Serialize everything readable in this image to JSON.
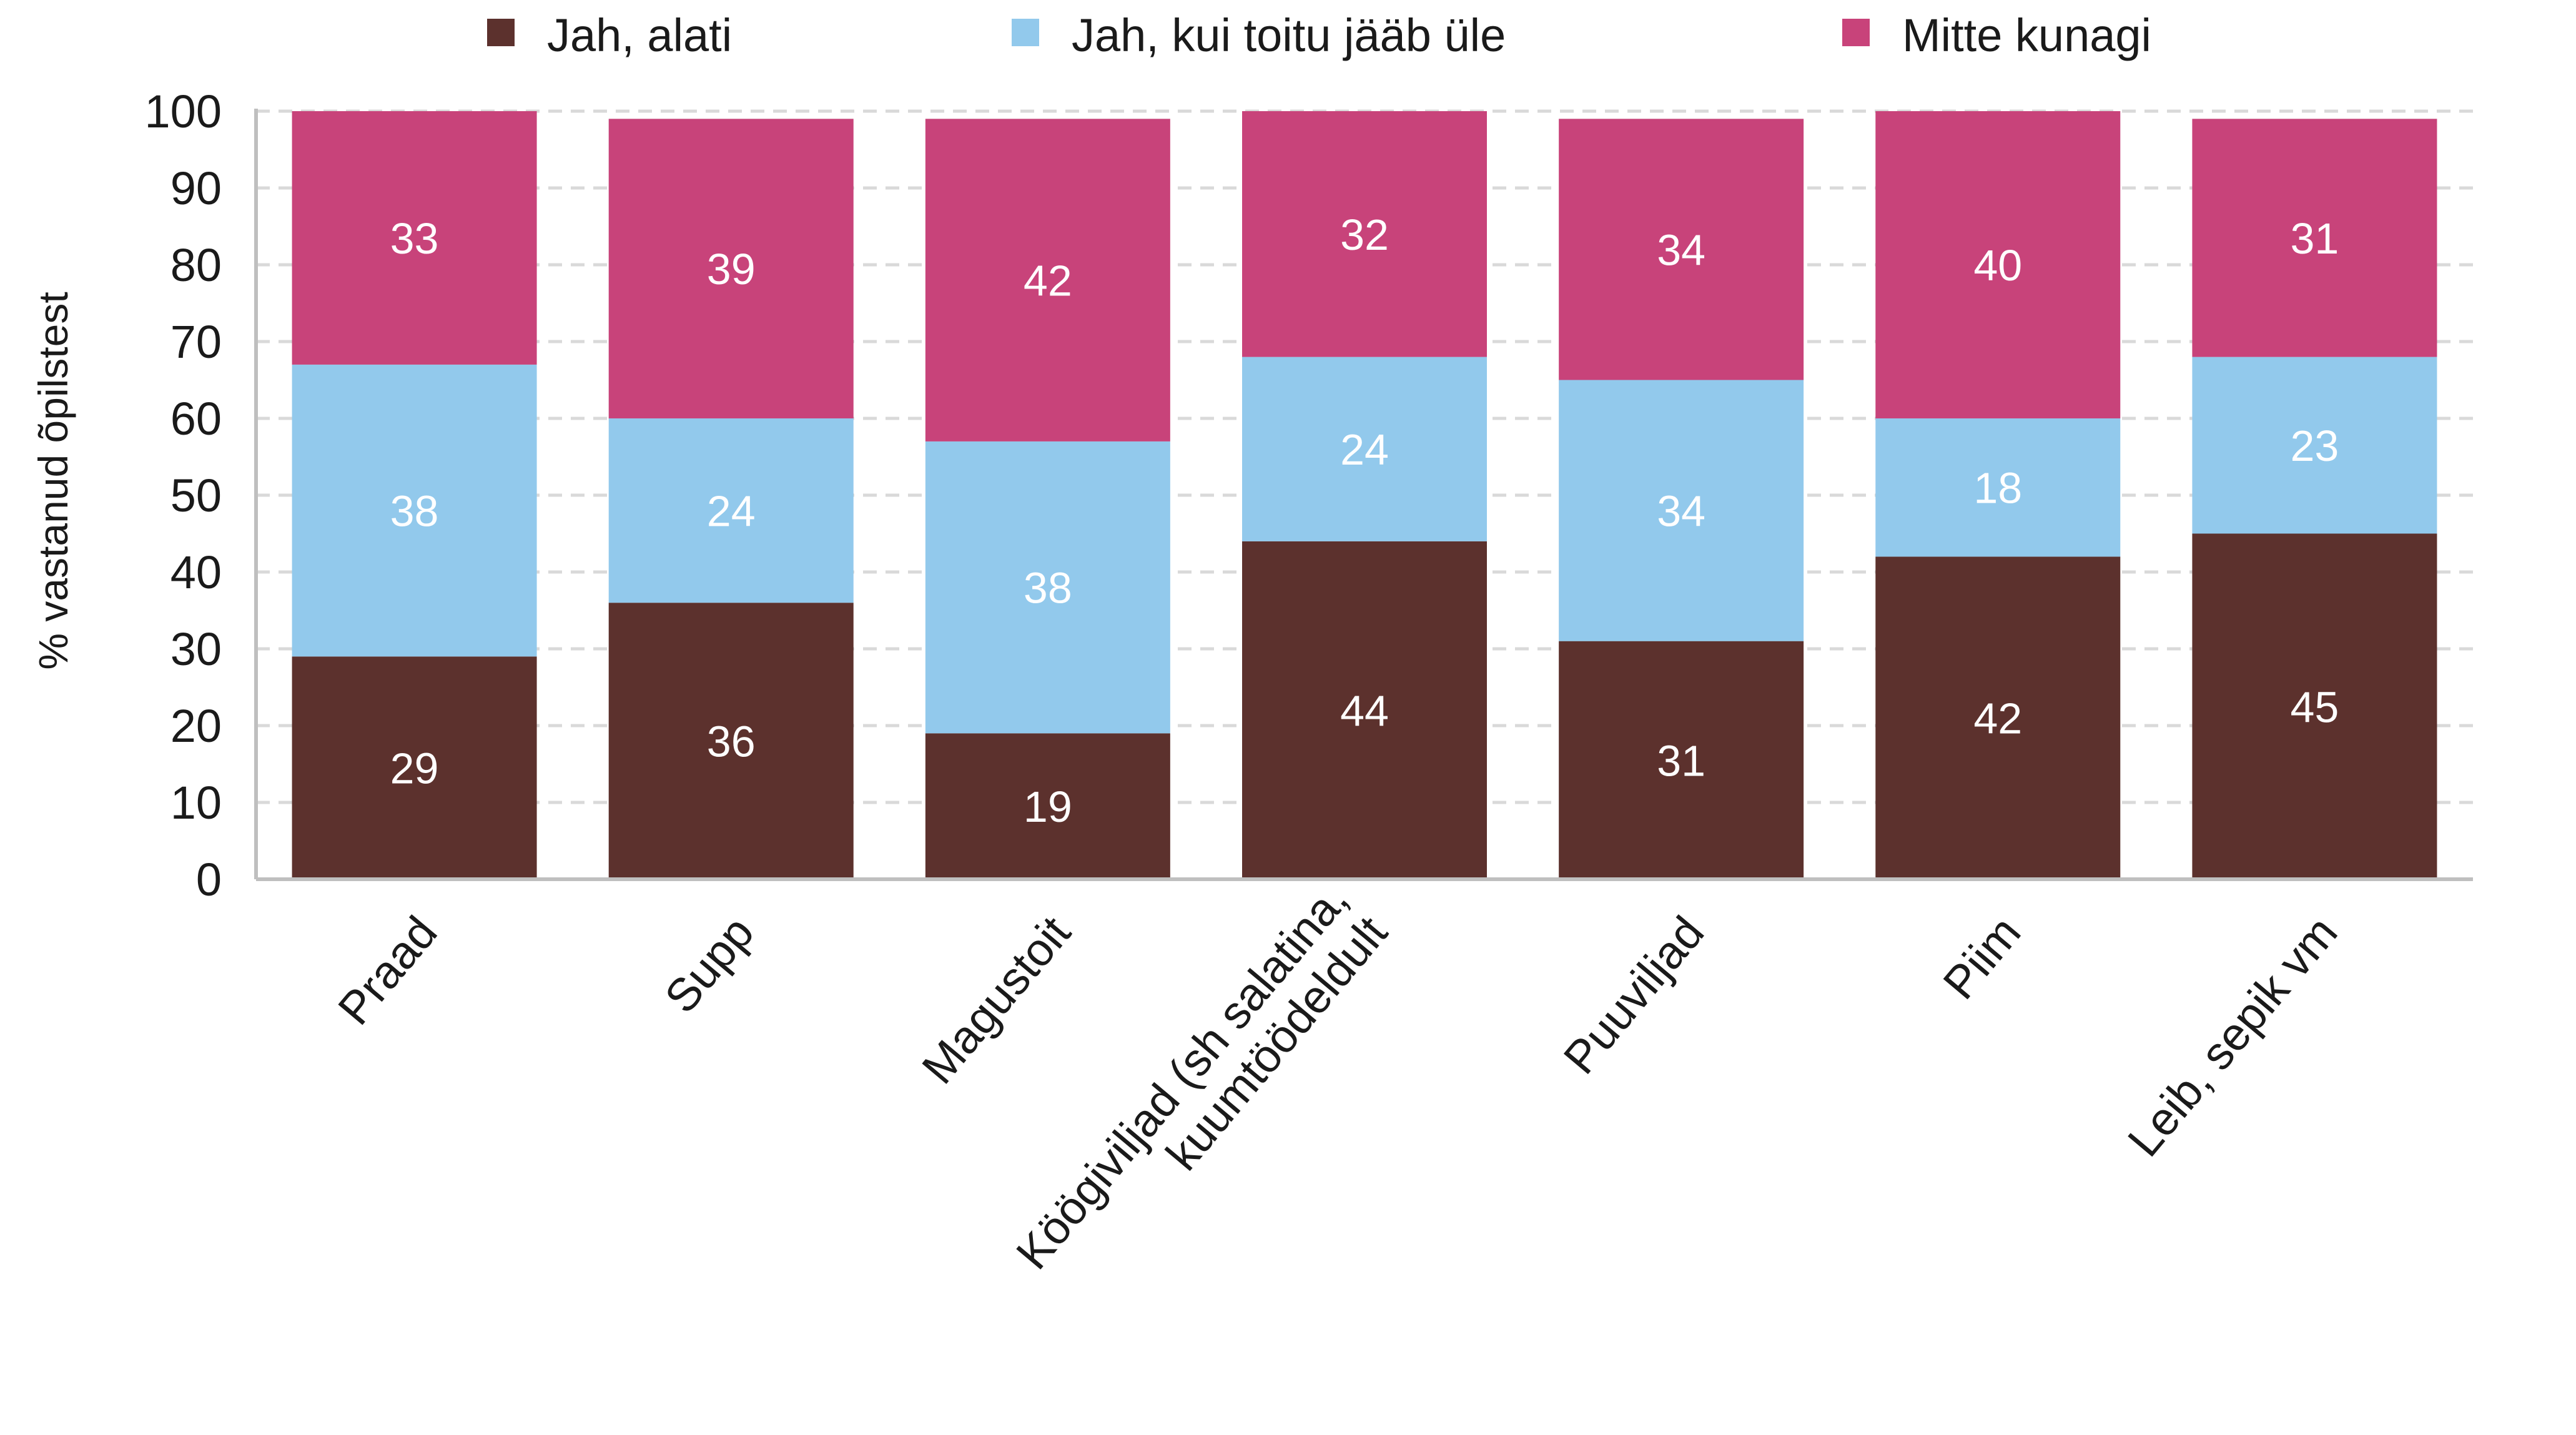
{
  "chart_data": {
    "type": "bar",
    "stacked": true,
    "categories": [
      "Praad",
      "Supp",
      "Magustoit",
      "Köögiviljad (sh salatina, kuumtöödeldult",
      "Puuviljad",
      "Piim",
      "Leib, sepik vm"
    ],
    "category_lines": [
      [
        "Praad"
      ],
      [
        "Supp"
      ],
      [
        "Magustoit"
      ],
      [
        "Köögiviljad (sh salatina,",
        "kuumtöödeldult"
      ],
      [
        "Puuviljad"
      ],
      [
        "Piim"
      ],
      [
        "Leib, sepik vm"
      ]
    ],
    "series": [
      {
        "name": "Jah, alati",
        "color": "#5c312d",
        "values": [
          29,
          36,
          19,
          44,
          31,
          42,
          45
        ]
      },
      {
        "name": "Jah, kui toitu jääb üle",
        "color": "#92c9ec",
        "values": [
          38,
          24,
          38,
          24,
          34,
          18,
          23
        ]
      },
      {
        "name": "Mitte kunagi",
        "color": "#c8437a",
        "values": [
          33,
          39,
          42,
          32,
          34,
          40,
          31
        ]
      }
    ],
    "ylabel": "% vastanud õpilstest",
    "xlabel": "",
    "ylim": [
      0,
      100
    ],
    "yticks": [
      0,
      10,
      20,
      30,
      40,
      50,
      60,
      70,
      80,
      90,
      100
    ],
    "grid": true,
    "legend_position": "top"
  }
}
